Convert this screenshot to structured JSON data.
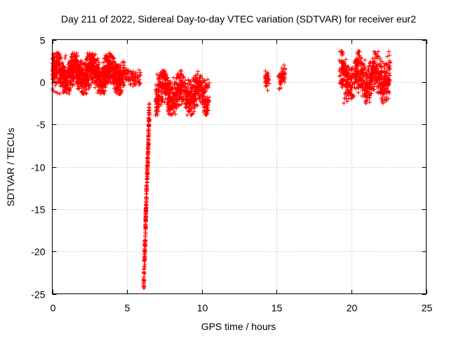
{
  "chart_data": {
    "type": "scatter",
    "title": "Day 211 of 2022, Sidereal Day-to-day VTEC variation (SDTVAR) for receiver eur2",
    "xlabel": "GPS time / hours",
    "ylabel": "SDTVAR / TECUs",
    "xlim": [
      0,
      25
    ],
    "ylim": [
      -25,
      5
    ],
    "xticks": [
      0,
      5,
      10,
      15,
      20,
      25
    ],
    "yticks": [
      5,
      0,
      -5,
      -10,
      -15,
      -20,
      -25
    ],
    "xtick_labels": [
      "0",
      "5",
      "10",
      "15",
      "20",
      "25"
    ],
    "ytick_labels": [
      "5",
      "0",
      "-5",
      "-10",
      "-15",
      "-20",
      "-25"
    ],
    "grid": true,
    "marker": "plus",
    "series_color": "#ff0000",
    "clusters": [
      {
        "x_start": 0.0,
        "x_end": 4.8,
        "y_min": -1.4,
        "y_max": 3.4,
        "density": 1200
      },
      {
        "x_start": 4.9,
        "x_end": 5.9,
        "y_min": -0.5,
        "y_max": 1.5,
        "density": 60
      },
      {
        "x_start": 6.1,
        "x_end": 6.5,
        "y_min": -24.3,
        "y_max": -2.6,
        "density": 220
      },
      {
        "x_start": 6.9,
        "x_end": 10.5,
        "y_min": -3.9,
        "y_max": 1.3,
        "density": 700
      },
      {
        "x_start": 14.2,
        "x_end": 14.5,
        "y_min": -1.0,
        "y_max": 1.3,
        "density": 40
      },
      {
        "x_start": 15.1,
        "x_end": 15.6,
        "y_min": -0.8,
        "y_max": 2.0,
        "density": 40
      },
      {
        "x_start": 19.2,
        "x_end": 22.6,
        "y_min": -2.5,
        "y_max": 3.6,
        "density": 650
      }
    ],
    "points": [
      [
        0.0,
        2.2
      ],
      [
        0.05,
        1.8
      ],
      [
        0.1,
        -1.1
      ],
      [
        0.15,
        0.5
      ],
      [
        0.2,
        1.5
      ],
      [
        0.25,
        -1.2
      ],
      [
        0.3,
        2.1
      ],
      [
        0.35,
        -1.3
      ],
      [
        0.4,
        1.2
      ],
      [
        0.45,
        0.3
      ],
      [
        0.5,
        -1.4
      ],
      [
        0.55,
        1.0
      ],
      [
        0.6,
        0.4
      ],
      [
        0.65,
        1.6
      ],
      [
        0.7,
        0.8
      ],
      [
        0.75,
        1.9
      ],
      [
        0.8,
        0.2
      ],
      [
        0.85,
        2.8
      ],
      [
        0.9,
        3.1
      ],
      [
        0.95,
        1.2
      ],
      [
        1.0,
        0.5
      ],
      [
        1.05,
        -0.2
      ],
      [
        1.1,
        1.4
      ],
      [
        1.15,
        2.2
      ],
      [
        1.2,
        -0.4
      ],
      [
        1.25,
        0.9
      ],
      [
        1.3,
        1.7
      ],
      [
        1.35,
        -0.3
      ],
      [
        1.4,
        2.5
      ],
      [
        1.45,
        0.6
      ],
      [
        1.5,
        1.3
      ],
      [
        1.55,
        2.9
      ],
      [
        1.6,
        0.1
      ],
      [
        1.65,
        1.1
      ],
      [
        1.7,
        2.0
      ],
      [
        1.75,
        -0.5
      ],
      [
        1.8,
        0.7
      ],
      [
        1.85,
        1.8
      ],
      [
        1.9,
        2.4
      ],
      [
        1.95,
        0.0
      ],
      [
        2.0,
        1.5
      ],
      [
        2.05,
        -0.6
      ],
      [
        2.1,
        0.9
      ],
      [
        2.15,
        2.2
      ],
      [
        2.2,
        1.0
      ],
      [
        2.25,
        -0.3
      ],
      [
        2.3,
        2.7
      ],
      [
        2.35,
        3.4
      ],
      [
        2.4,
        1.4
      ],
      [
        2.45,
        0.2
      ],
      [
        2.5,
        3.1
      ],
      [
        2.55,
        2.0
      ],
      [
        2.6,
        -0.2
      ],
      [
        2.65,
        1.6
      ],
      [
        2.7,
        2.8
      ],
      [
        2.75,
        0.4
      ],
      [
        2.8,
        1.9
      ],
      [
        2.85,
        2.5
      ],
      [
        2.9,
        0.8
      ],
      [
        2.95,
        -0.1
      ],
      [
        3.0,
        1.7
      ],
      [
        3.05,
        0.6
      ],
      [
        3.1,
        2.1
      ],
      [
        3.15,
        -0.4
      ],
      [
        3.2,
        1.2
      ],
      [
        3.25,
        0.3
      ],
      [
        3.3,
        1.5
      ],
      [
        3.35,
        0.9
      ],
      [
        3.4,
        0.0
      ],
      [
        3.45,
        1.3
      ],
      [
        3.5,
        0.5
      ],
      [
        3.55,
        1.1
      ],
      [
        3.6,
        0.2
      ],
      [
        3.65,
        0.8
      ],
      [
        3.7,
        -0.2
      ],
      [
        3.75,
        1.0
      ],
      [
        3.8,
        0.3
      ],
      [
        3.85,
        0.6
      ],
      [
        3.9,
        0.1
      ],
      [
        3.95,
        0.7
      ],
      [
        4.0,
        0.4
      ],
      [
        4.05,
        0.9
      ],
      [
        4.1,
        0.2
      ],
      [
        4.15,
        0.6
      ],
      [
        4.2,
        0.3
      ],
      [
        4.25,
        0.8
      ],
      [
        4.3,
        0.5
      ],
      [
        4.35,
        0.1
      ],
      [
        4.4,
        0.4
      ],
      [
        4.45,
        0.7
      ],
      [
        4.5,
        0.3
      ],
      [
        4.55,
        1.0
      ],
      [
        4.6,
        0.5
      ],
      [
        4.65,
        0.2
      ],
      [
        4.7,
        0.6
      ],
      [
        4.75,
        1.2
      ],
      [
        4.95,
        0.4
      ],
      [
        5.05,
        1.3
      ],
      [
        5.1,
        0.2
      ],
      [
        5.2,
        -0.3
      ],
      [
        5.3,
        0.6
      ],
      [
        5.4,
        -0.5
      ],
      [
        5.5,
        0.8
      ],
      [
        5.6,
        1.1
      ],
      [
        5.7,
        0.5
      ],
      [
        5.8,
        1.4
      ],
      [
        5.85,
        0.9
      ],
      [
        6.15,
        -24.3
      ],
      [
        6.16,
        -23.4
      ],
      [
        6.18,
        -22.6
      ],
      [
        6.19,
        -21.5
      ],
      [
        6.2,
        -20.8
      ],
      [
        6.21,
        -20.0
      ],
      [
        6.22,
        -19.4
      ],
      [
        6.23,
        -18.7
      ],
      [
        6.24,
        -17.9
      ],
      [
        6.25,
        -17.2
      ],
      [
        6.26,
        -16.5
      ],
      [
        6.27,
        -15.9
      ],
      [
        6.28,
        -15.2
      ],
      [
        6.29,
        -14.6
      ],
      [
        6.3,
        -13.9
      ],
      [
        6.31,
        -13.2
      ],
      [
        6.32,
        -12.5
      ],
      [
        6.33,
        -11.8
      ],
      [
        6.34,
        -11.1
      ],
      [
        6.35,
        -10.5
      ],
      [
        6.36,
        -9.8
      ],
      [
        6.37,
        -9.1
      ],
      [
        6.38,
        -8.5
      ],
      [
        6.39,
        -7.8
      ],
      [
        6.4,
        -7.1
      ],
      [
        6.41,
        -6.5
      ],
      [
        6.42,
        -5.8
      ],
      [
        6.43,
        -5.0
      ],
      [
        6.44,
        -4.3
      ],
      [
        6.45,
        -3.6
      ],
      [
        6.46,
        -3.0
      ],
      [
        6.47,
        -2.6
      ],
      [
        6.25,
        -15.6
      ],
      [
        6.28,
        -12.9
      ],
      [
        6.32,
        -10.2
      ],
      [
        6.35,
        -8.9
      ],
      [
        6.38,
        -11.4
      ],
      [
        6.4,
        -9.5
      ],
      [
        6.42,
        -8.0
      ],
      [
        6.44,
        -7.3
      ],
      [
        6.46,
        -6.1
      ],
      [
        6.48,
        -4.6
      ],
      [
        7.0,
        0.9
      ],
      [
        7.1,
        0.3
      ],
      [
        7.2,
        -0.2
      ],
      [
        7.3,
        0.6
      ],
      [
        7.4,
        1.3
      ],
      [
        7.5,
        -0.5
      ],
      [
        7.6,
        -1.2
      ],
      [
        7.7,
        0.4
      ],
      [
        7.8,
        -1.5
      ],
      [
        7.9,
        0.1
      ],
      [
        8.0,
        -0.8
      ],
      [
        8.1,
        0.5
      ],
      [
        8.2,
        -0.2
      ],
      [
        8.3,
        -1.3
      ],
      [
        8.4,
        0.8
      ],
      [
        8.5,
        -1.9
      ],
      [
        8.6,
        0.2
      ],
      [
        8.7,
        -2.3
      ],
      [
        8.8,
        0.6
      ],
      [
        8.9,
        -0.6
      ],
      [
        9.0,
        -1.0
      ],
      [
        9.1,
        0.3
      ],
      [
        9.2,
        -3.5
      ],
      [
        9.3,
        -3.9
      ],
      [
        9.4,
        -0.4
      ],
      [
        9.5,
        -3.1
      ],
      [
        9.6,
        0.1
      ],
      [
        9.7,
        -2.8
      ],
      [
        9.8,
        -0.7
      ],
      [
        9.9,
        -2.3
      ],
      [
        10.0,
        -1.8
      ],
      [
        10.1,
        -0.9
      ],
      [
        10.2,
        0.2
      ],
      [
        10.3,
        -0.4
      ],
      [
        10.4,
        0.3
      ],
      [
        10.45,
        -0.6
      ],
      [
        14.25,
        1.3
      ],
      [
        14.3,
        0.2
      ],
      [
        14.35,
        -0.4
      ],
      [
        14.4,
        -1.0
      ],
      [
        14.45,
        0.7
      ],
      [
        14.5,
        -0.2
      ],
      [
        15.15,
        -0.8
      ],
      [
        15.2,
        0.9
      ],
      [
        15.3,
        0.7
      ],
      [
        15.4,
        1.1
      ],
      [
        15.5,
        2.0
      ],
      [
        15.55,
        1.6
      ],
      [
        19.2,
        0.7
      ],
      [
        19.3,
        0.2
      ],
      [
        19.4,
        -0.6
      ],
      [
        19.5,
        -2.5
      ],
      [
        19.55,
        -1.9
      ],
      [
        19.6,
        0.9
      ],
      [
        19.7,
        1.5
      ],
      [
        19.8,
        1.8
      ],
      [
        19.9,
        -0.3
      ],
      [
        20.0,
        0.6
      ],
      [
        20.1,
        1.7
      ],
      [
        20.2,
        -0.2
      ],
      [
        20.3,
        1.0
      ],
      [
        20.4,
        0.1
      ],
      [
        20.5,
        0.5
      ],
      [
        20.6,
        -0.4
      ],
      [
        20.7,
        1.3
      ],
      [
        20.8,
        2.0
      ],
      [
        20.9,
        2.6
      ],
      [
        21.0,
        0.8
      ],
      [
        21.1,
        1.4
      ],
      [
        21.2,
        -0.1
      ],
      [
        21.3,
        0.5
      ],
      [
        21.4,
        1.2
      ],
      [
        21.5,
        -0.5
      ],
      [
        21.6,
        0.9
      ],
      [
        21.7,
        1.6
      ],
      [
        21.8,
        -0.7
      ],
      [
        21.9,
        0.3
      ],
      [
        22.0,
        1.1
      ],
      [
        22.1,
        -0.4
      ],
      [
        22.2,
        0.7
      ],
      [
        22.3,
        2.2
      ],
      [
        22.4,
        3.0
      ],
      [
        22.5,
        3.6
      ],
      [
        22.55,
        2.5
      ]
    ]
  }
}
